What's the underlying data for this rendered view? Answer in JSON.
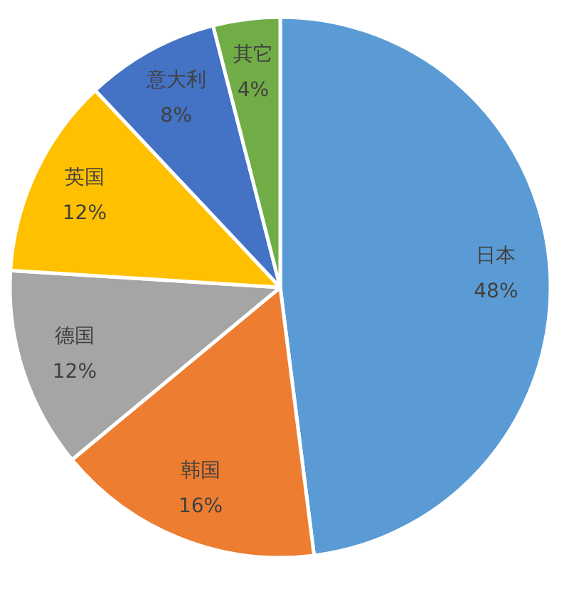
{
  "chart_data": {
    "type": "pie",
    "categories": [
      "日本",
      "韩国",
      "德国",
      "英国",
      "意大利",
      "其它"
    ],
    "values": [
      48,
      16,
      12,
      12,
      8,
      4
    ],
    "colors": [
      "#5b9bd5",
      "#ed7d31",
      "#a5a5a5",
      "#ffc000",
      "#4472c4",
      "#70ad47"
    ],
    "value_labels": [
      "48%",
      "16%",
      "12%",
      "12%",
      "8%",
      "4%"
    ]
  }
}
